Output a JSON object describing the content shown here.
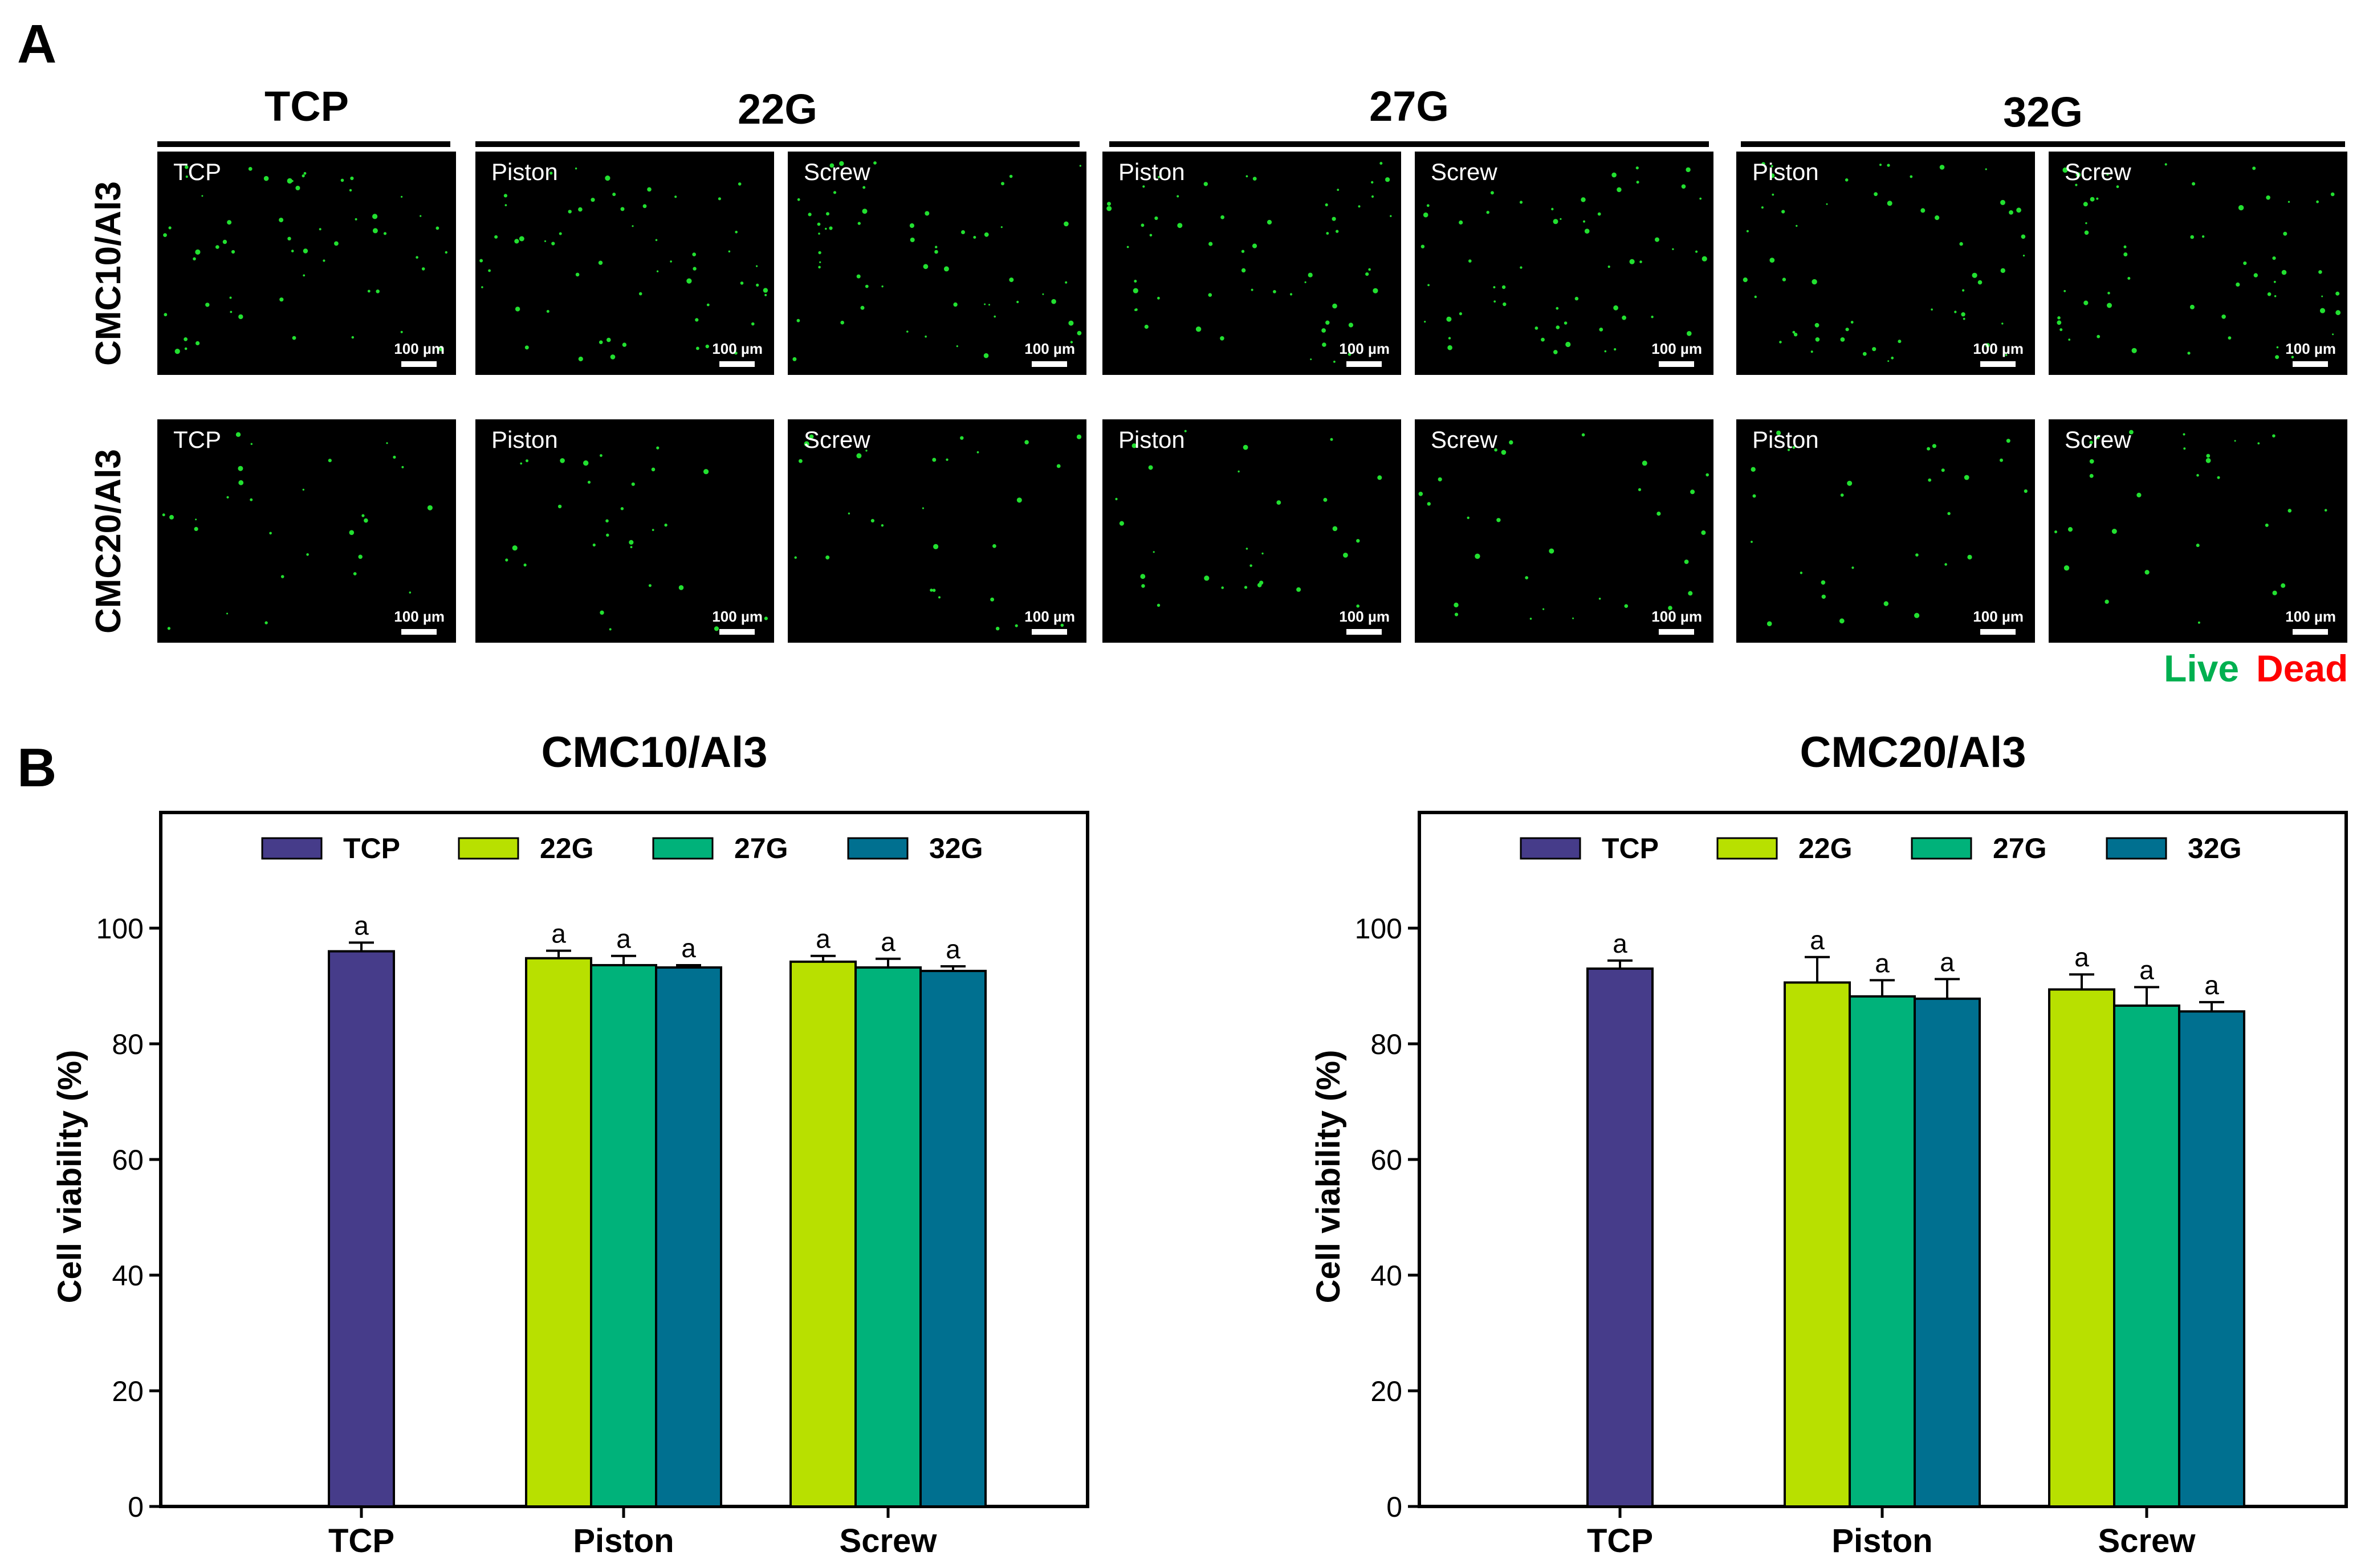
{
  "panel_a": {
    "letter": "A",
    "group_headers": [
      "TCP",
      "22G",
      "27G",
      "32G"
    ],
    "row_labels": [
      "CMC10/Al3",
      "CMC20/Al3"
    ],
    "tiles": [
      [
        "TCP",
        "Piston",
        "Screw",
        "Piston",
        "Screw",
        "Piston",
        "Screw"
      ],
      [
        "TCP",
        "Piston",
        "Screw",
        "Piston",
        "Screw",
        "Piston",
        "Screw"
      ]
    ],
    "scale_label": "100 µm",
    "legend": {
      "live": "Live",
      "dead": "Dead",
      "live_color": "#00b050",
      "dead_color": "#ff0000"
    }
  },
  "panel_b": {
    "letter": "B"
  },
  "colors": {
    "TCP": "#463c8a",
    "22G": "#b8e000",
    "27G": "#00b27a",
    "32G": "#007090"
  },
  "chart_data": [
    {
      "type": "bar",
      "title": "CMC10/Al3",
      "ylabel": "Cell viability (%)",
      "xlabel": "",
      "ylim": [
        0,
        120
      ],
      "yticks": [
        0,
        20,
        40,
        60,
        80,
        100
      ],
      "categories": [
        "TCP",
        "Piston",
        "Screw"
      ],
      "legend": {
        "position": "top",
        "entries": [
          "TCP",
          "22G",
          "27G",
          "32G"
        ]
      },
      "series": [
        {
          "name": "TCP",
          "values": [
            96.0,
            null,
            null
          ],
          "errors": [
            1.5,
            null,
            null
          ],
          "labels": [
            "a",
            null,
            null
          ]
        },
        {
          "name": "22G",
          "values": [
            null,
            94.8,
            94.2
          ],
          "errors": [
            null,
            1.3,
            1.0
          ],
          "labels": [
            null,
            "a",
            "a"
          ]
        },
        {
          "name": "27G",
          "values": [
            null,
            93.6,
            93.2
          ],
          "errors": [
            null,
            1.6,
            1.5
          ],
          "labels": [
            null,
            "a",
            "a"
          ]
        },
        {
          "name": "32G",
          "values": [
            null,
            93.2,
            92.6
          ],
          "errors": [
            null,
            0.4,
            0.8
          ],
          "labels": [
            null,
            "a",
            "a"
          ]
        }
      ]
    },
    {
      "type": "bar",
      "title": "CMC20/Al3",
      "ylabel": "Cell viability (%)",
      "xlabel": "",
      "ylim": [
        0,
        120
      ],
      "yticks": [
        0,
        20,
        40,
        60,
        80,
        100
      ],
      "categories": [
        "TCP",
        "Piston",
        "Screw"
      ],
      "legend": {
        "position": "top",
        "entries": [
          "TCP",
          "22G",
          "27G",
          "32G"
        ]
      },
      "series": [
        {
          "name": "TCP",
          "values": [
            93.0,
            null,
            null
          ],
          "errors": [
            1.4,
            null,
            null
          ],
          "labels": [
            "a",
            null,
            null
          ]
        },
        {
          "name": "22G",
          "values": [
            null,
            90.6,
            89.4
          ],
          "errors": [
            null,
            4.4,
            2.6
          ],
          "labels": [
            null,
            "a",
            "a"
          ]
        },
        {
          "name": "27G",
          "values": [
            null,
            88.2,
            86.6
          ],
          "errors": [
            null,
            2.8,
            3.2
          ],
          "labels": [
            null,
            "a",
            "a"
          ]
        },
        {
          "name": "32G",
          "values": [
            null,
            87.8,
            85.6
          ],
          "errors": [
            null,
            3.4,
            1.6
          ],
          "labels": [
            null,
            "a",
            "a"
          ]
        }
      ]
    }
  ]
}
